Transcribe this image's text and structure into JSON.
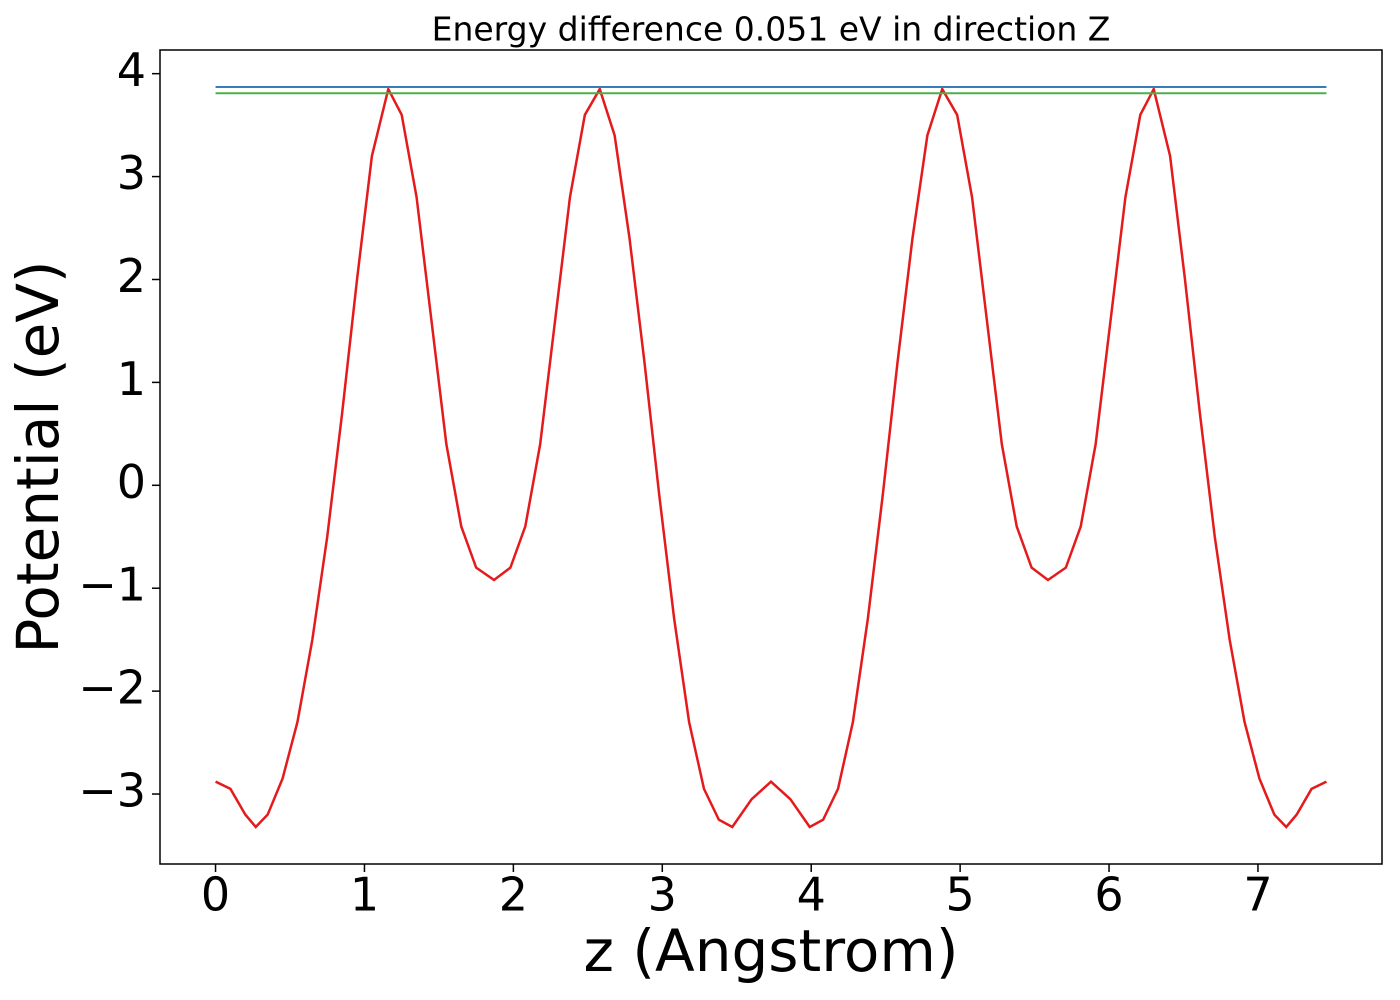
{
  "chart_data": {
    "type": "line",
    "title": "Energy difference 0.051 eV in direction Z",
    "x_label": "z (Angstrom)",
    "y_label": "Potential (eV)",
    "xlim": [
      -0.373,
      7.833
    ],
    "ylim": [
      -3.68,
      4.23
    ],
    "xticks": [
      0,
      1,
      2,
      3,
      4,
      5,
      6,
      7
    ],
    "yticks": [
      {
        "value": -3,
        "label": "−3"
      },
      {
        "value": -2,
        "label": "−2"
      },
      {
        "value": -1,
        "label": "−1"
      },
      0,
      1,
      2,
      3,
      4
    ],
    "grid": false,
    "series": [
      {
        "color": "#e41a1c",
        "x": [
          0,
          0.1,
          0.2,
          0.27,
          0.35,
          0.45,
          0.55,
          0.65,
          0.75,
          0.85,
          0.95,
          1.05,
          1.16,
          1.25,
          1.35,
          1.45,
          1.55,
          1.65,
          1.75,
          1.87,
          1.98,
          2.08,
          2.18,
          2.28,
          2.38,
          2.48,
          2.58,
          2.68,
          2.78,
          2.88,
          2.98,
          3.08,
          3.18,
          3.28,
          3.38,
          3.47,
          3.6,
          3.73,
          3.86,
          3.99,
          4.08,
          4.18,
          4.28,
          4.38,
          4.48,
          4.58,
          4.68,
          4.78,
          4.88,
          4.98,
          5.08,
          5.18,
          5.28,
          5.38,
          5.48,
          5.59,
          5.71,
          5.81,
          5.91,
          6.01,
          6.11,
          6.21,
          6.3,
          6.41,
          6.51,
          6.61,
          6.71,
          6.81,
          6.91,
          7.01,
          7.11,
          7.19,
          7.26,
          7.36,
          7.46
        ],
        "values": [
          -2.88,
          -2.95,
          -3.2,
          -3.32,
          -3.2,
          -2.85,
          -2.3,
          -1.5,
          -0.5,
          0.7,
          2.0,
          3.2,
          3.85,
          3.6,
          2.8,
          1.6,
          0.4,
          -0.4,
          -0.8,
          -0.92,
          -0.8,
          -0.4,
          0.4,
          1.6,
          2.8,
          3.6,
          3.85,
          3.4,
          2.4,
          1.2,
          -0.1,
          -1.3,
          -2.3,
          -2.95,
          -3.25,
          -3.32,
          -3.05,
          -2.88,
          -3.05,
          -3.32,
          -3.25,
          -2.95,
          -2.3,
          -1.3,
          -0.1,
          1.2,
          2.4,
          3.4,
          3.85,
          3.6,
          2.8,
          1.6,
          0.4,
          -0.4,
          -0.8,
          -0.92,
          -0.8,
          -0.4,
          0.4,
          1.6,
          2.8,
          3.6,
          3.85,
          3.2,
          2.0,
          0.7,
          -0.5,
          -1.5,
          -2.3,
          -2.85,
          -3.2,
          -3.32,
          -3.2,
          -2.95,
          -2.88
        ]
      },
      {
        "color": "#377eb8",
        "x": [
          0,
          7.46
        ],
        "values": [
          3.87,
          3.87
        ]
      },
      {
        "color": "#4daf4a",
        "x": [
          0,
          7.46
        ],
        "values": [
          3.81,
          3.81
        ]
      }
    ]
  }
}
